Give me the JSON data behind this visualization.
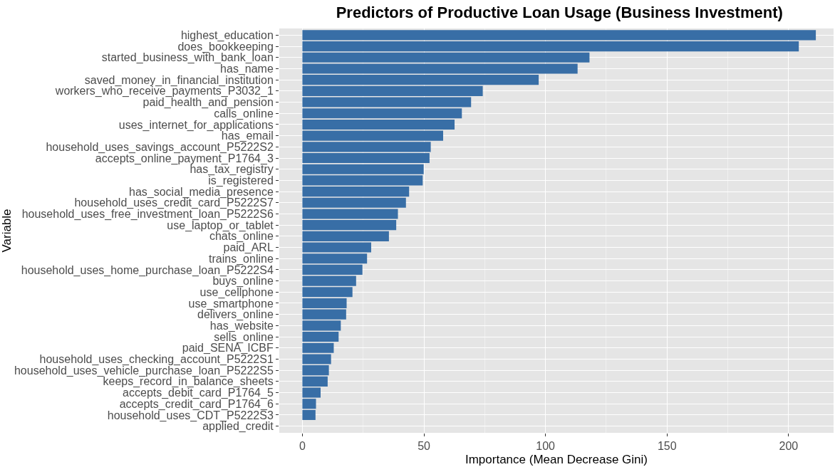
{
  "chart_data": {
    "type": "bar",
    "orientation": "horizontal",
    "title": "Predictors of Productive Loan Usage (Business Investment)",
    "xlabel": "Importance (Mean Decrease Gini)",
    "ylabel": "Variable",
    "categories": [
      "highest_education",
      "does_bookkeeping",
      "started_business_with_bank_loan",
      "has_name",
      "saved_money_in_financial_institution",
      "workers_who_receive_payments_P3032_1",
      "paid_health_and_pension",
      "calls_online",
      "uses_internet_for_applications",
      "has_email",
      "household_uses_savings_account_P5222S2",
      "accepts_online_payment_P1764_3",
      "has_tax_registry",
      "is_registered",
      "has_social_media_presence",
      "household_uses_credit_card_P5222S7",
      "household_uses_free_investment_loan_P5222S6",
      "use_laptop_or_tablet",
      "chats_online",
      "paid_ARL",
      "trains_online",
      "household_uses_home_purchase_loan_P5222S4",
      "buys_online",
      "use_cellphone",
      "use_smartphone",
      "delivers_online",
      "has_website",
      "sells_online",
      "paid_SENA_ICBF",
      "household_uses_checking_account_P5222S1",
      "household_uses_vehicle_purchase_loan_P5222S5",
      "keeps_record_in_balance_sheets",
      "accepts_debit_card_P1764_5",
      "accepts_credit_card_P1764_6",
      "household_uses_CDT_P5222S3",
      "applied_credit"
    ],
    "values": [
      211.2,
      204.2,
      118.1,
      113.2,
      97.2,
      74.2,
      69.4,
      65.6,
      62.6,
      57.9,
      52.8,
      52.3,
      49.9,
      49.5,
      43.9,
      42.6,
      39.3,
      38.6,
      35.6,
      28.3,
      26.6,
      24.7,
      22.1,
      20.6,
      18.2,
      18.0,
      15.8,
      14.9,
      12.9,
      11.8,
      10.9,
      10.4,
      7.5,
      5.6,
      5.4,
      0
    ],
    "color": "#386ea6",
    "xlim": [
      -9.5,
      218.5
    ],
    "xticks": [
      0,
      50,
      100,
      150,
      200
    ],
    "grid": true
  }
}
